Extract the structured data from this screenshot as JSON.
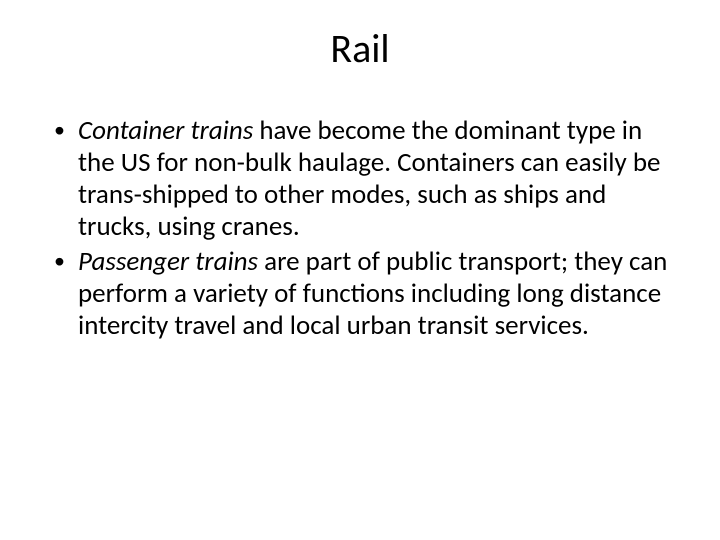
{
  "title": "Rail",
  "bullets": [
    {
      "emphasis": "Container trains",
      "rest": " have become the dominant type in the US for non-bulk haulage. Containers can easily be trans-shipped to other modes, such as ships and trucks, using cranes."
    },
    {
      "emphasis": "Passenger trains",
      "rest": " are part of public transport; they can perform a variety of functions including long distance intercity travel and local urban transit services."
    }
  ],
  "colors": {
    "background": "#ffffff",
    "text": "#000000"
  },
  "typography": {
    "title_fontsize": 40,
    "body_fontsize": 27,
    "font_family": "Calibri"
  }
}
